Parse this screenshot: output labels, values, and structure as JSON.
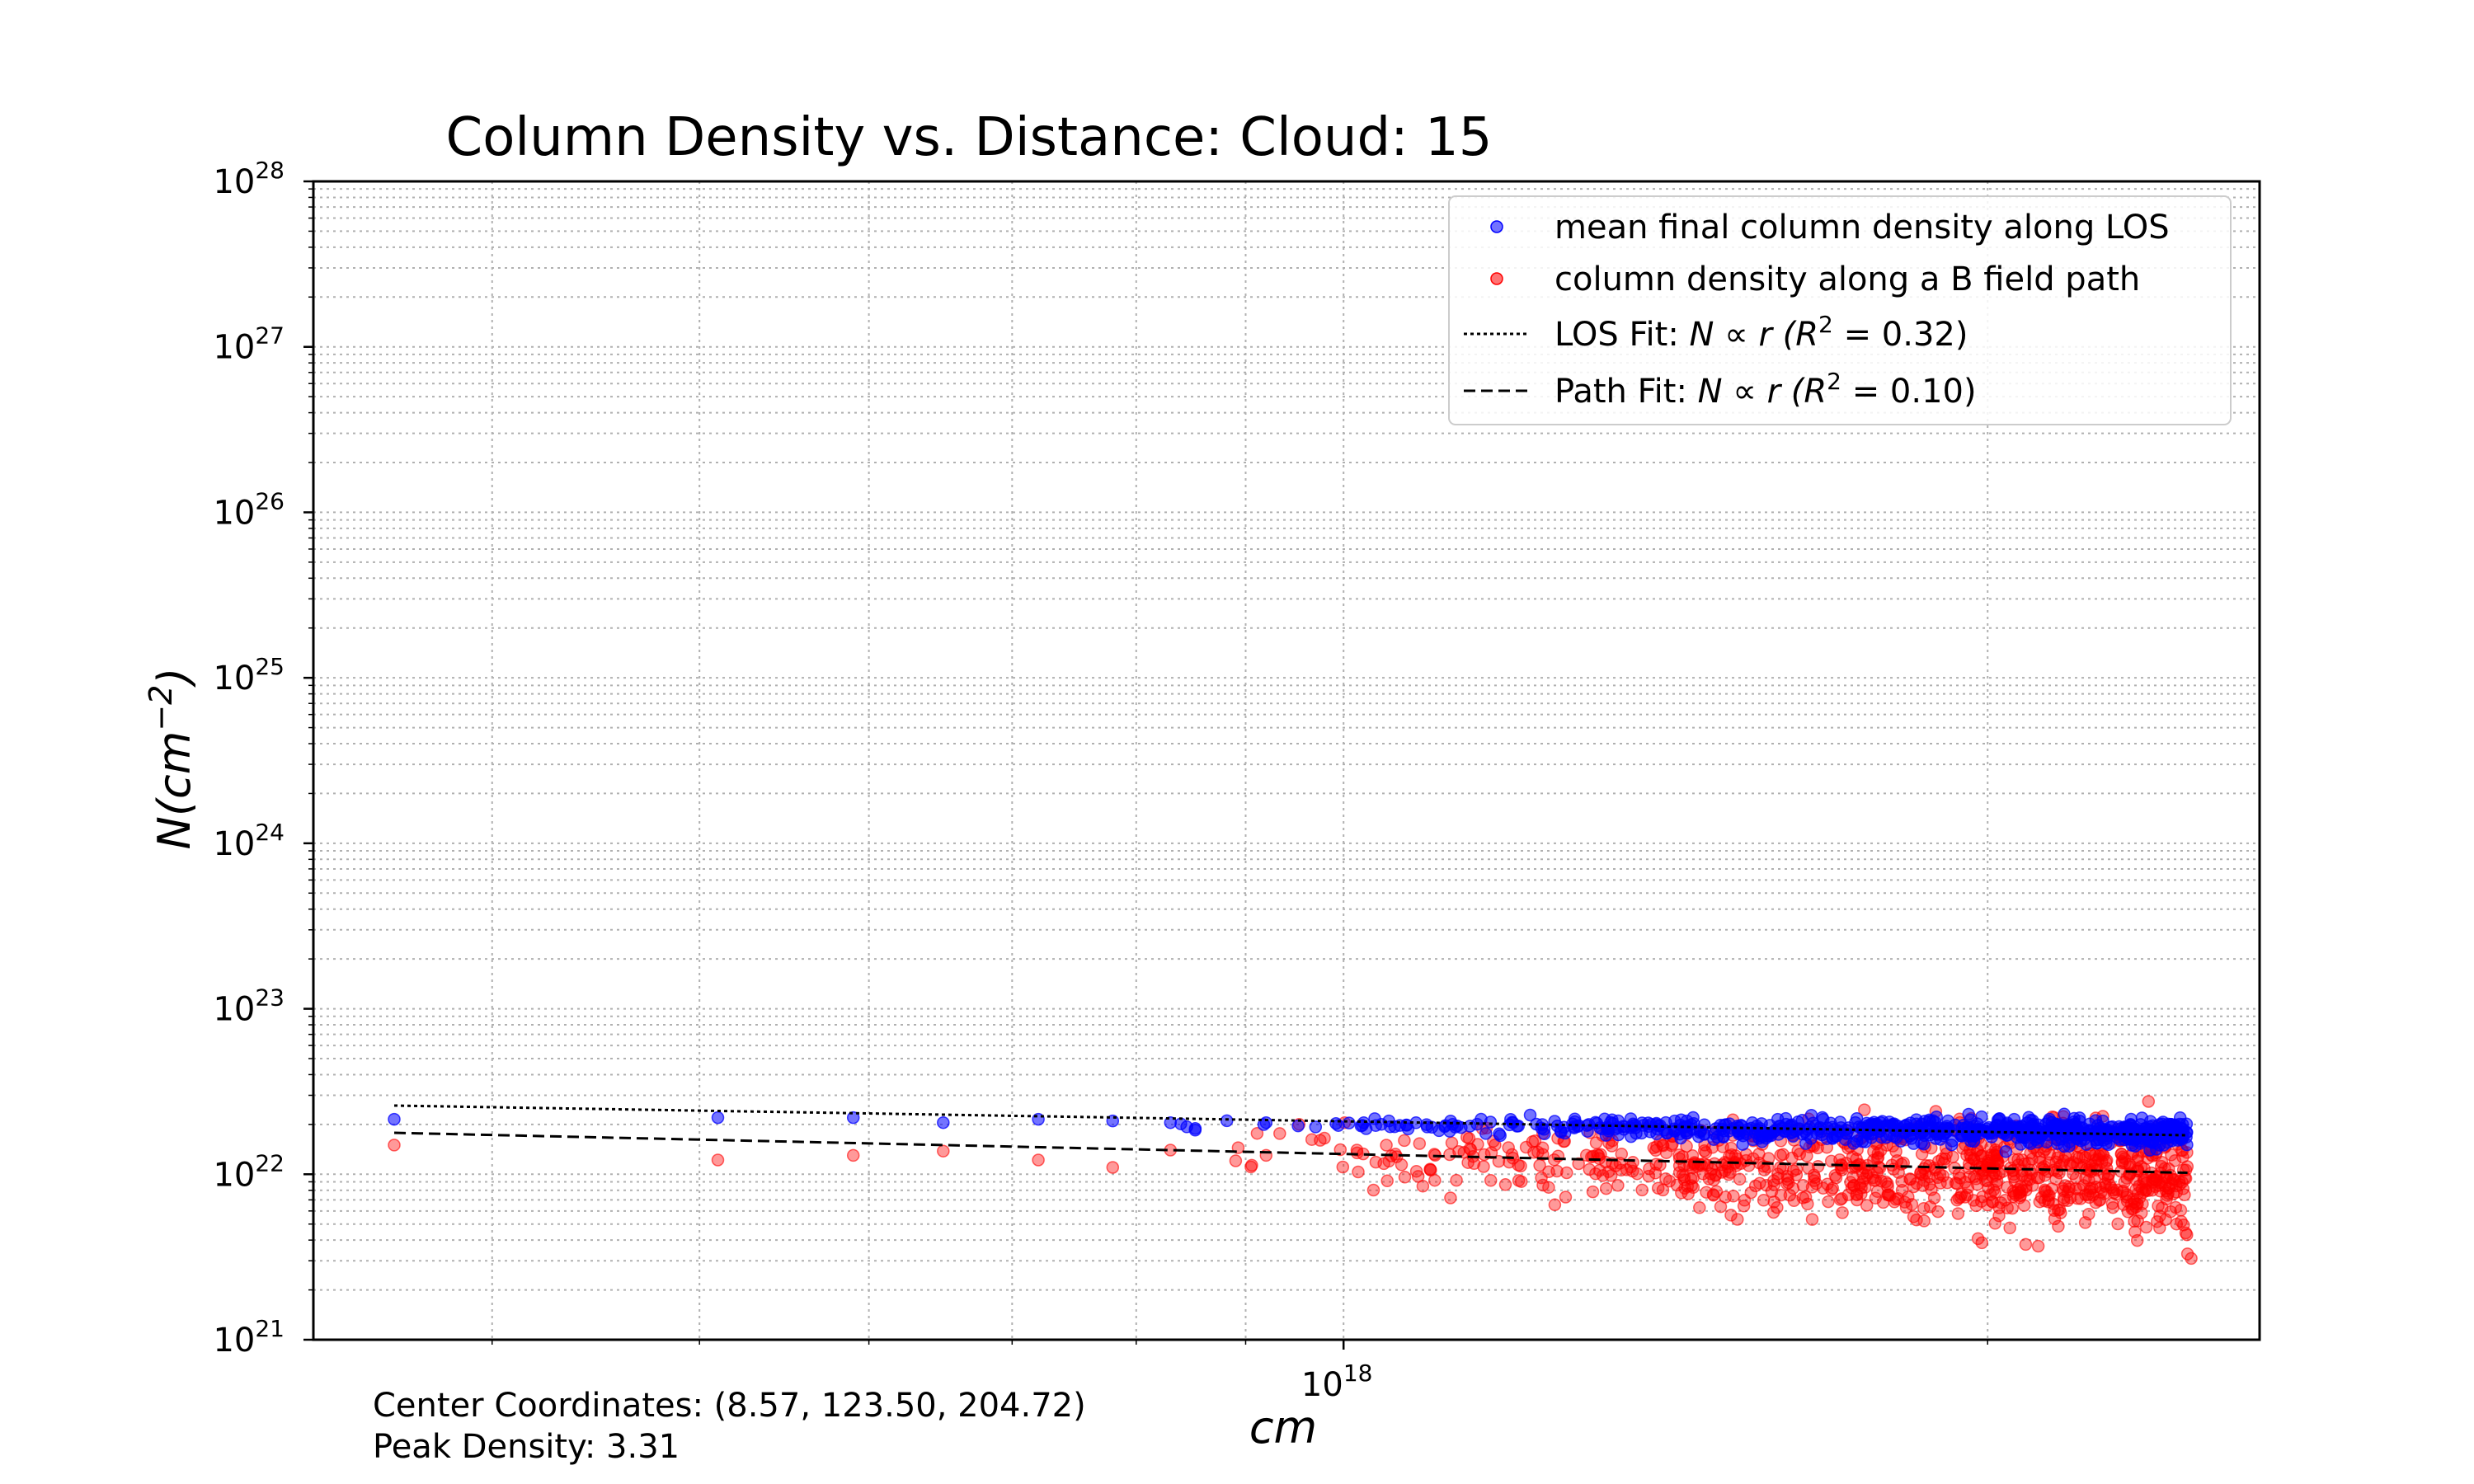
{
  "chart_data": {
    "type": "scatter",
    "title": "Column Density vs. Distance: Cloud: 15",
    "xlabel": "cm",
    "ylabel": "N(cm^-2)",
    "xscale": "log",
    "yscale": "log",
    "xlim": [
      3.3e+17,
      2.68e+18
    ],
    "ylim": [
      1e+21,
      1e+28
    ],
    "grid": true,
    "legend_position": "top-right",
    "x_tick_major": {
      "value": 1e+18,
      "base": "10",
      "exp": "18"
    },
    "y_ticks": [
      {
        "value": 1e+21,
        "base": "10",
        "exp": "21"
      },
      {
        "value": 1e+22,
        "base": "10",
        "exp": "22"
      },
      {
        "value": 1e+23,
        "base": "10",
        "exp": "23"
      },
      {
        "value": 1e+24,
        "base": "10",
        "exp": "24"
      },
      {
        "value": 1e+25,
        "base": "10",
        "exp": "25"
      },
      {
        "value": 1e+26,
        "base": "10",
        "exp": "26"
      },
      {
        "value": 1e+27,
        "base": "10",
        "exp": "27"
      },
      {
        "value": 1e+28,
        "base": "10",
        "exp": "28"
      }
    ],
    "series": [
      {
        "name": " mean final column density along LOS",
        "color": "#0000ff",
        "alpha": 0.55,
        "sample_points": [
          [
            3.6e+17,
            2.15e+22
          ],
          [
            5.1e+17,
            2.2e+22
          ],
          [
            5.9e+17,
            2.2e+22
          ],
          [
            6.5e+17,
            2.05e+22
          ],
          [
            7.2e+17,
            2.15e+22
          ],
          [
            7.8e+17,
            2.1e+22
          ],
          [
            8.3e+17,
            2.05e+22
          ],
          [
            9.2e+17,
            2.05e+22
          ],
          [
            1.05e+18,
            2.1e+22
          ],
          [
            1.2e+18,
            2.05e+22
          ],
          [
            1.4e+18,
            2e+22
          ],
          [
            1.6e+18,
            1.95e+22
          ],
          [
            1.9e+18,
            1.9e+22
          ],
          [
            2.2e+18,
            1.85e+22
          ],
          [
            2.45e+18,
            1.8e+22
          ]
        ],
        "dense_region": {
          "x_range": [
            7.5e+17,
            2.48e+18
          ],
          "y_center_start": 2.05e+22,
          "y_center_end": 1.78e+22,
          "y_spread_dex": 0.04
        }
      },
      {
        "name": "column density along a B field path",
        "color": "#ff0000",
        "alpha": 0.4,
        "sample_points": [
          [
            3.6e+17,
            1.5e+22
          ],
          [
            5.1e+17,
            1.22e+22
          ],
          [
            5.9e+17,
            1.3e+22
          ],
          [
            6.5e+17,
            1.38e+22
          ],
          [
            7.2e+17,
            1.22e+22
          ],
          [
            7.8e+17,
            1.1e+22
          ],
          [
            8.3e+17,
            1.4e+22
          ],
          [
            9.2e+17,
            1.3e+22
          ],
          [
            1.05e+18,
            1.2e+22
          ],
          [
            1.2e+18,
            1.25e+22
          ],
          [
            1.4e+18,
            1.15e+22
          ],
          [
            1.6e+18,
            1.1e+22
          ],
          [
            1.9e+18,
            1e+22
          ],
          [
            2.2e+18,
            9.5e+21
          ],
          [
            2.45e+18,
            8.5e+21
          ],
          [
            2.48e+18,
            3.3e+21
          ],
          [
            2.49e+18,
            3.1e+21
          ]
        ],
        "dense_region": {
          "x_range": [
            7.5e+17,
            2.48e+18
          ],
          "y_center_start": 1.35e+22,
          "y_center_end": 9.5e+21,
          "y_spread_dex": 0.16
        }
      }
    ],
    "fits": [
      {
        "name": "LOS Fit",
        "style": "dotted",
        "x": [
          3.6e+17,
          2.48e+18
        ],
        "y": [
          2.6e+22,
          1.72e+22
        ]
      },
      {
        "name": "Path Fit",
        "style": "dashed",
        "x": [
          3.6e+17,
          2.48e+18
        ],
        "y": [
          1.78e+22,
          1.02e+22
        ]
      }
    ],
    "legend": [
      {
        "kind": "scatter",
        "color": "#0000ff",
        "text": " mean final column density along LOS"
      },
      {
        "kind": "scatter",
        "color": "#ff0000",
        "text": "column density along a B field path"
      },
      {
        "kind": "dotted",
        "prefix": "LOS Fit: ",
        "formula": "N ∝ r (R",
        "sup": "2",
        "suffix": " = 0.32)"
      },
      {
        "kind": "dashed",
        "prefix": "Path Fit: ",
        "formula": "N ∝ r (R",
        "sup": "2",
        "suffix": " = 0.10)"
      }
    ]
  },
  "footer": {
    "center_coordinates": "Center Coordinates: (8.57, 123.50, 204.72)",
    "peak_density": "Peak Density: 3.31"
  }
}
